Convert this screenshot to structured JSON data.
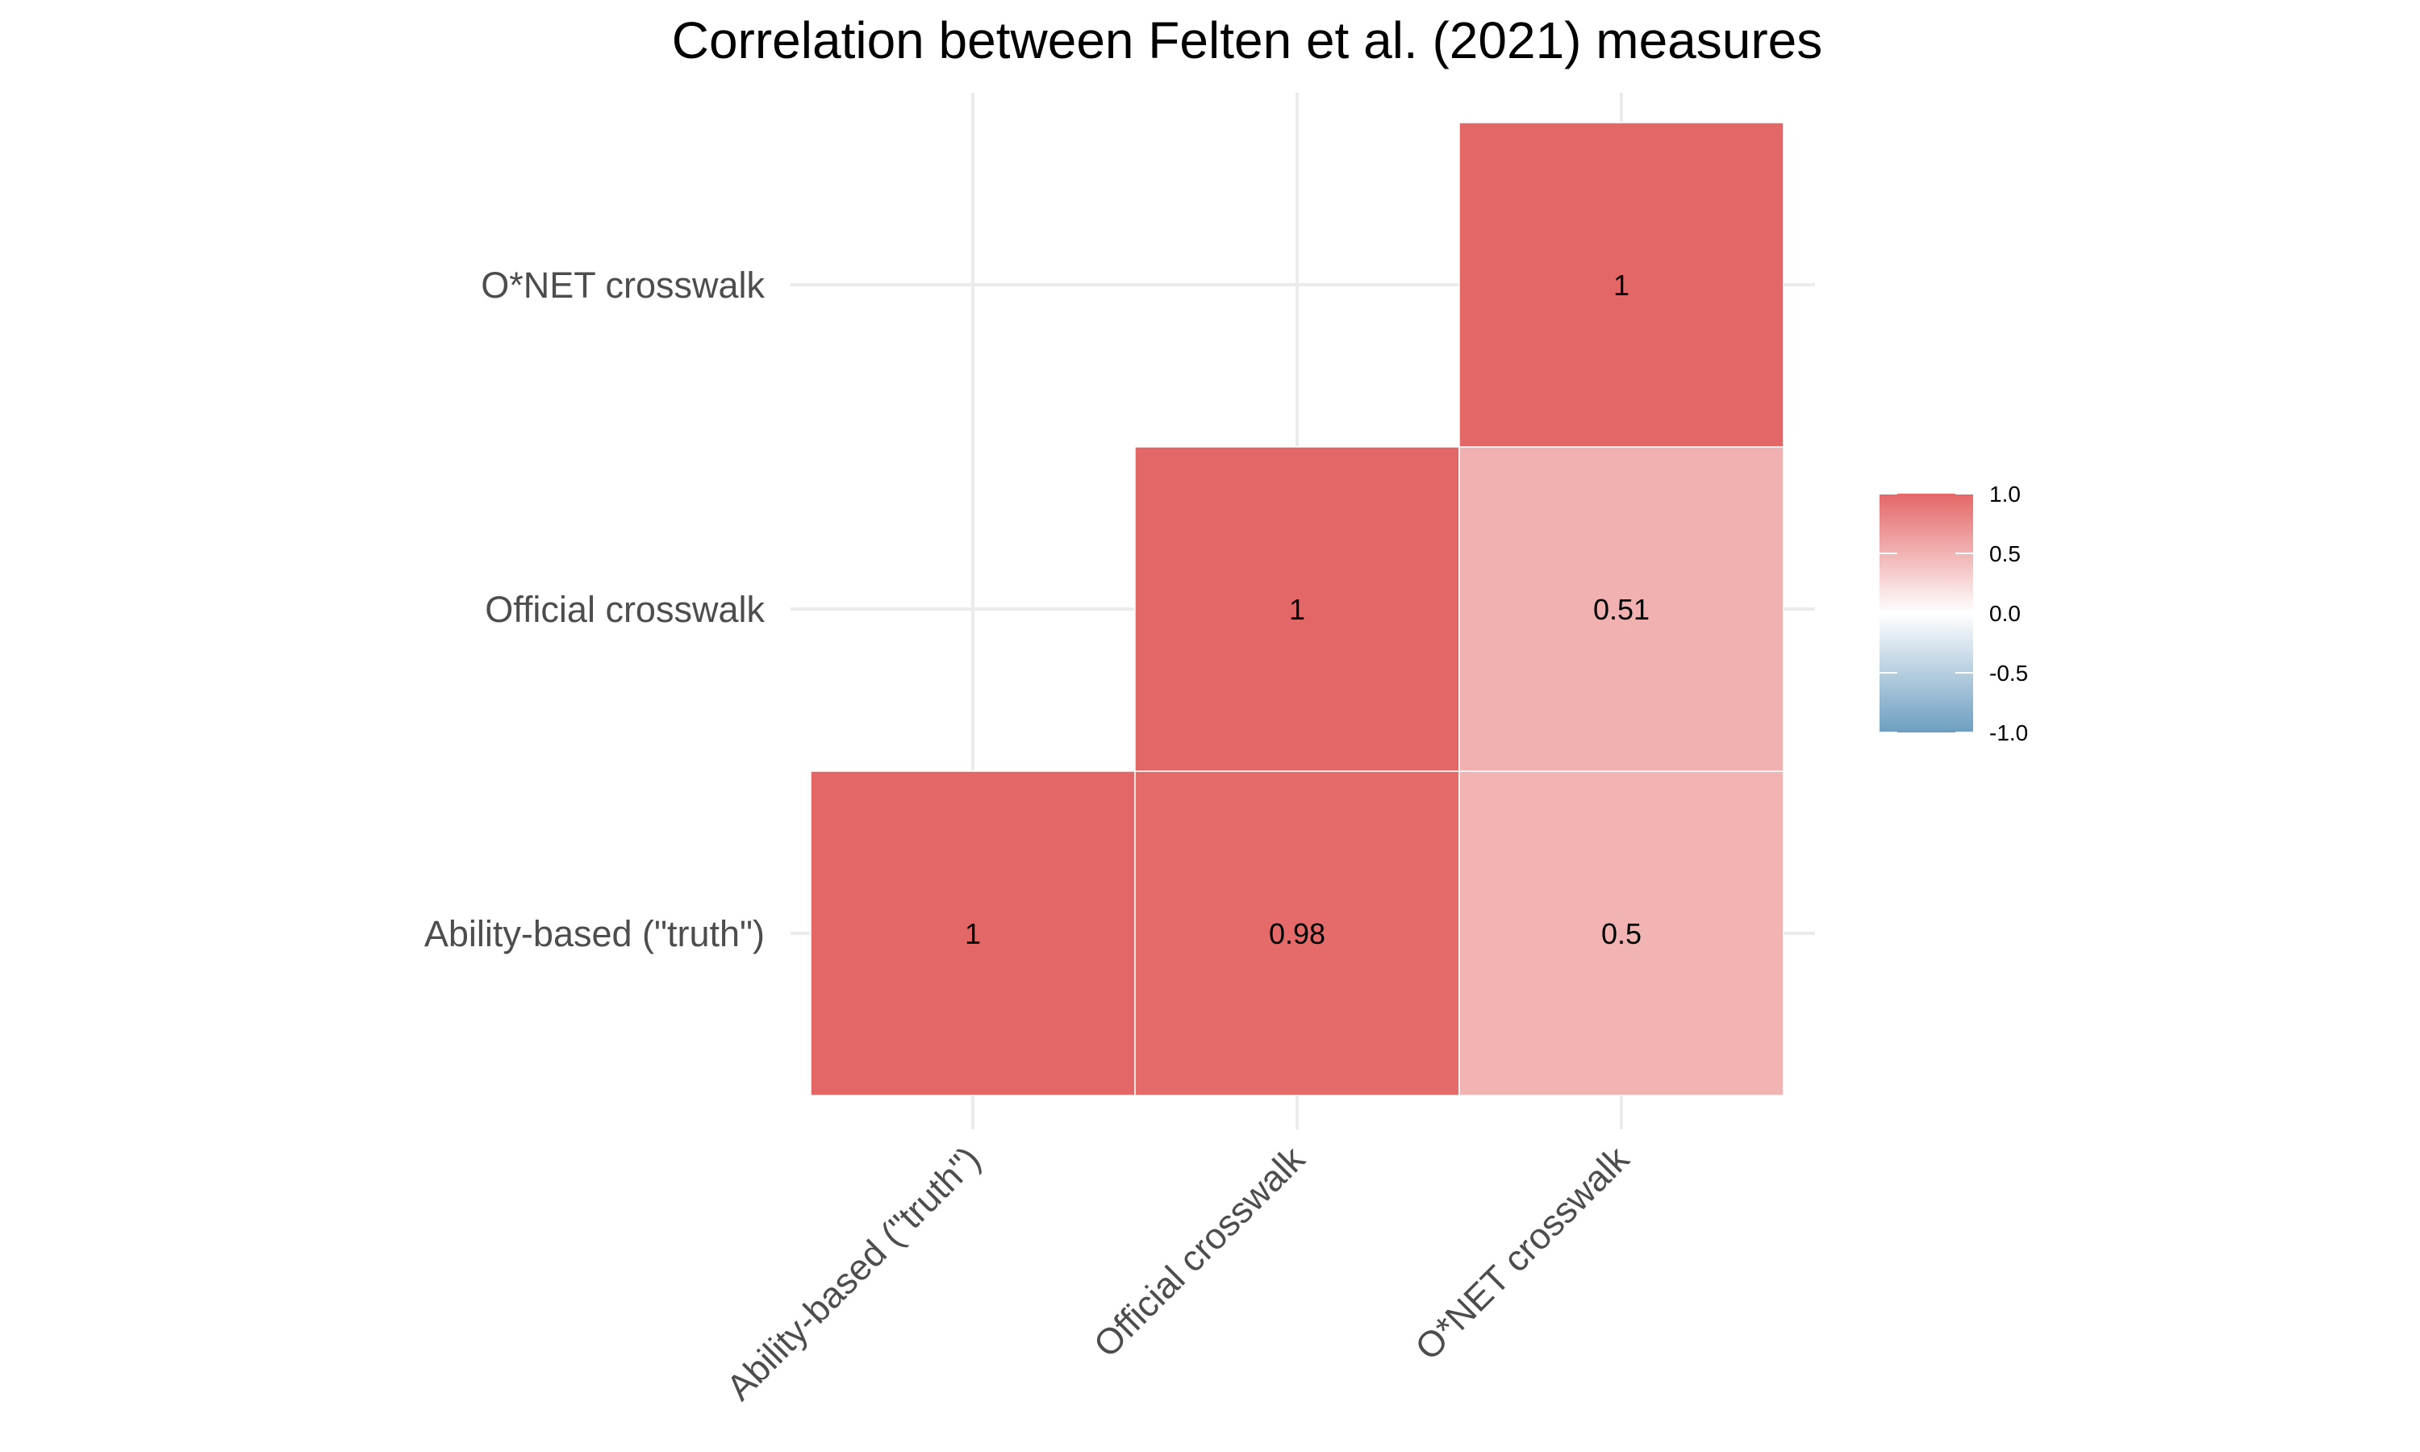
{
  "chart_data": {
    "type": "heatmap",
    "title": "Correlation between Felten et al. (2021) measures",
    "xlabel": "",
    "ylabel": "",
    "x_categories": [
      "Ability-based (\"truth\")",
      "Official crosswalk",
      "O*NET crosswalk"
    ],
    "y_categories": [
      "Ability-based (\"truth\")",
      "Official crosswalk",
      "O*NET crosswalk"
    ],
    "cells": [
      {
        "x": "Ability-based (\"truth\")",
        "y": "Ability-based (\"truth\")",
        "value": 1,
        "label": "1"
      },
      {
        "x": "Official crosswalk",
        "y": "Ability-based (\"truth\")",
        "value": 0.98,
        "label": "0.98"
      },
      {
        "x": "O*NET crosswalk",
        "y": "Ability-based (\"truth\")",
        "value": 0.5,
        "label": "0.5"
      },
      {
        "x": "Official crosswalk",
        "y": "Official crosswalk",
        "value": 1,
        "label": "1"
      },
      {
        "x": "O*NET crosswalk",
        "y": "Official crosswalk",
        "value": 0.51,
        "label": "0.51"
      },
      {
        "x": "O*NET crosswalk",
        "y": "O*NET crosswalk",
        "value": 1,
        "label": "1"
      }
    ],
    "legend": {
      "position": "right",
      "range": [
        -1.0,
        1.0
      ],
      "ticks": [
        {
          "value": 1.0,
          "label": "1.0"
        },
        {
          "value": 0.5,
          "label": "0.5"
        },
        {
          "value": 0.0,
          "label": "0.0"
        },
        {
          "value": -0.5,
          "label": "-0.5"
        },
        {
          "value": -1.0,
          "label": "-1.0"
        }
      ]
    },
    "colors": {
      "high": "#e46767",
      "mid": "#ffffff",
      "low": "#6d9ec1"
    },
    "grid": true
  }
}
